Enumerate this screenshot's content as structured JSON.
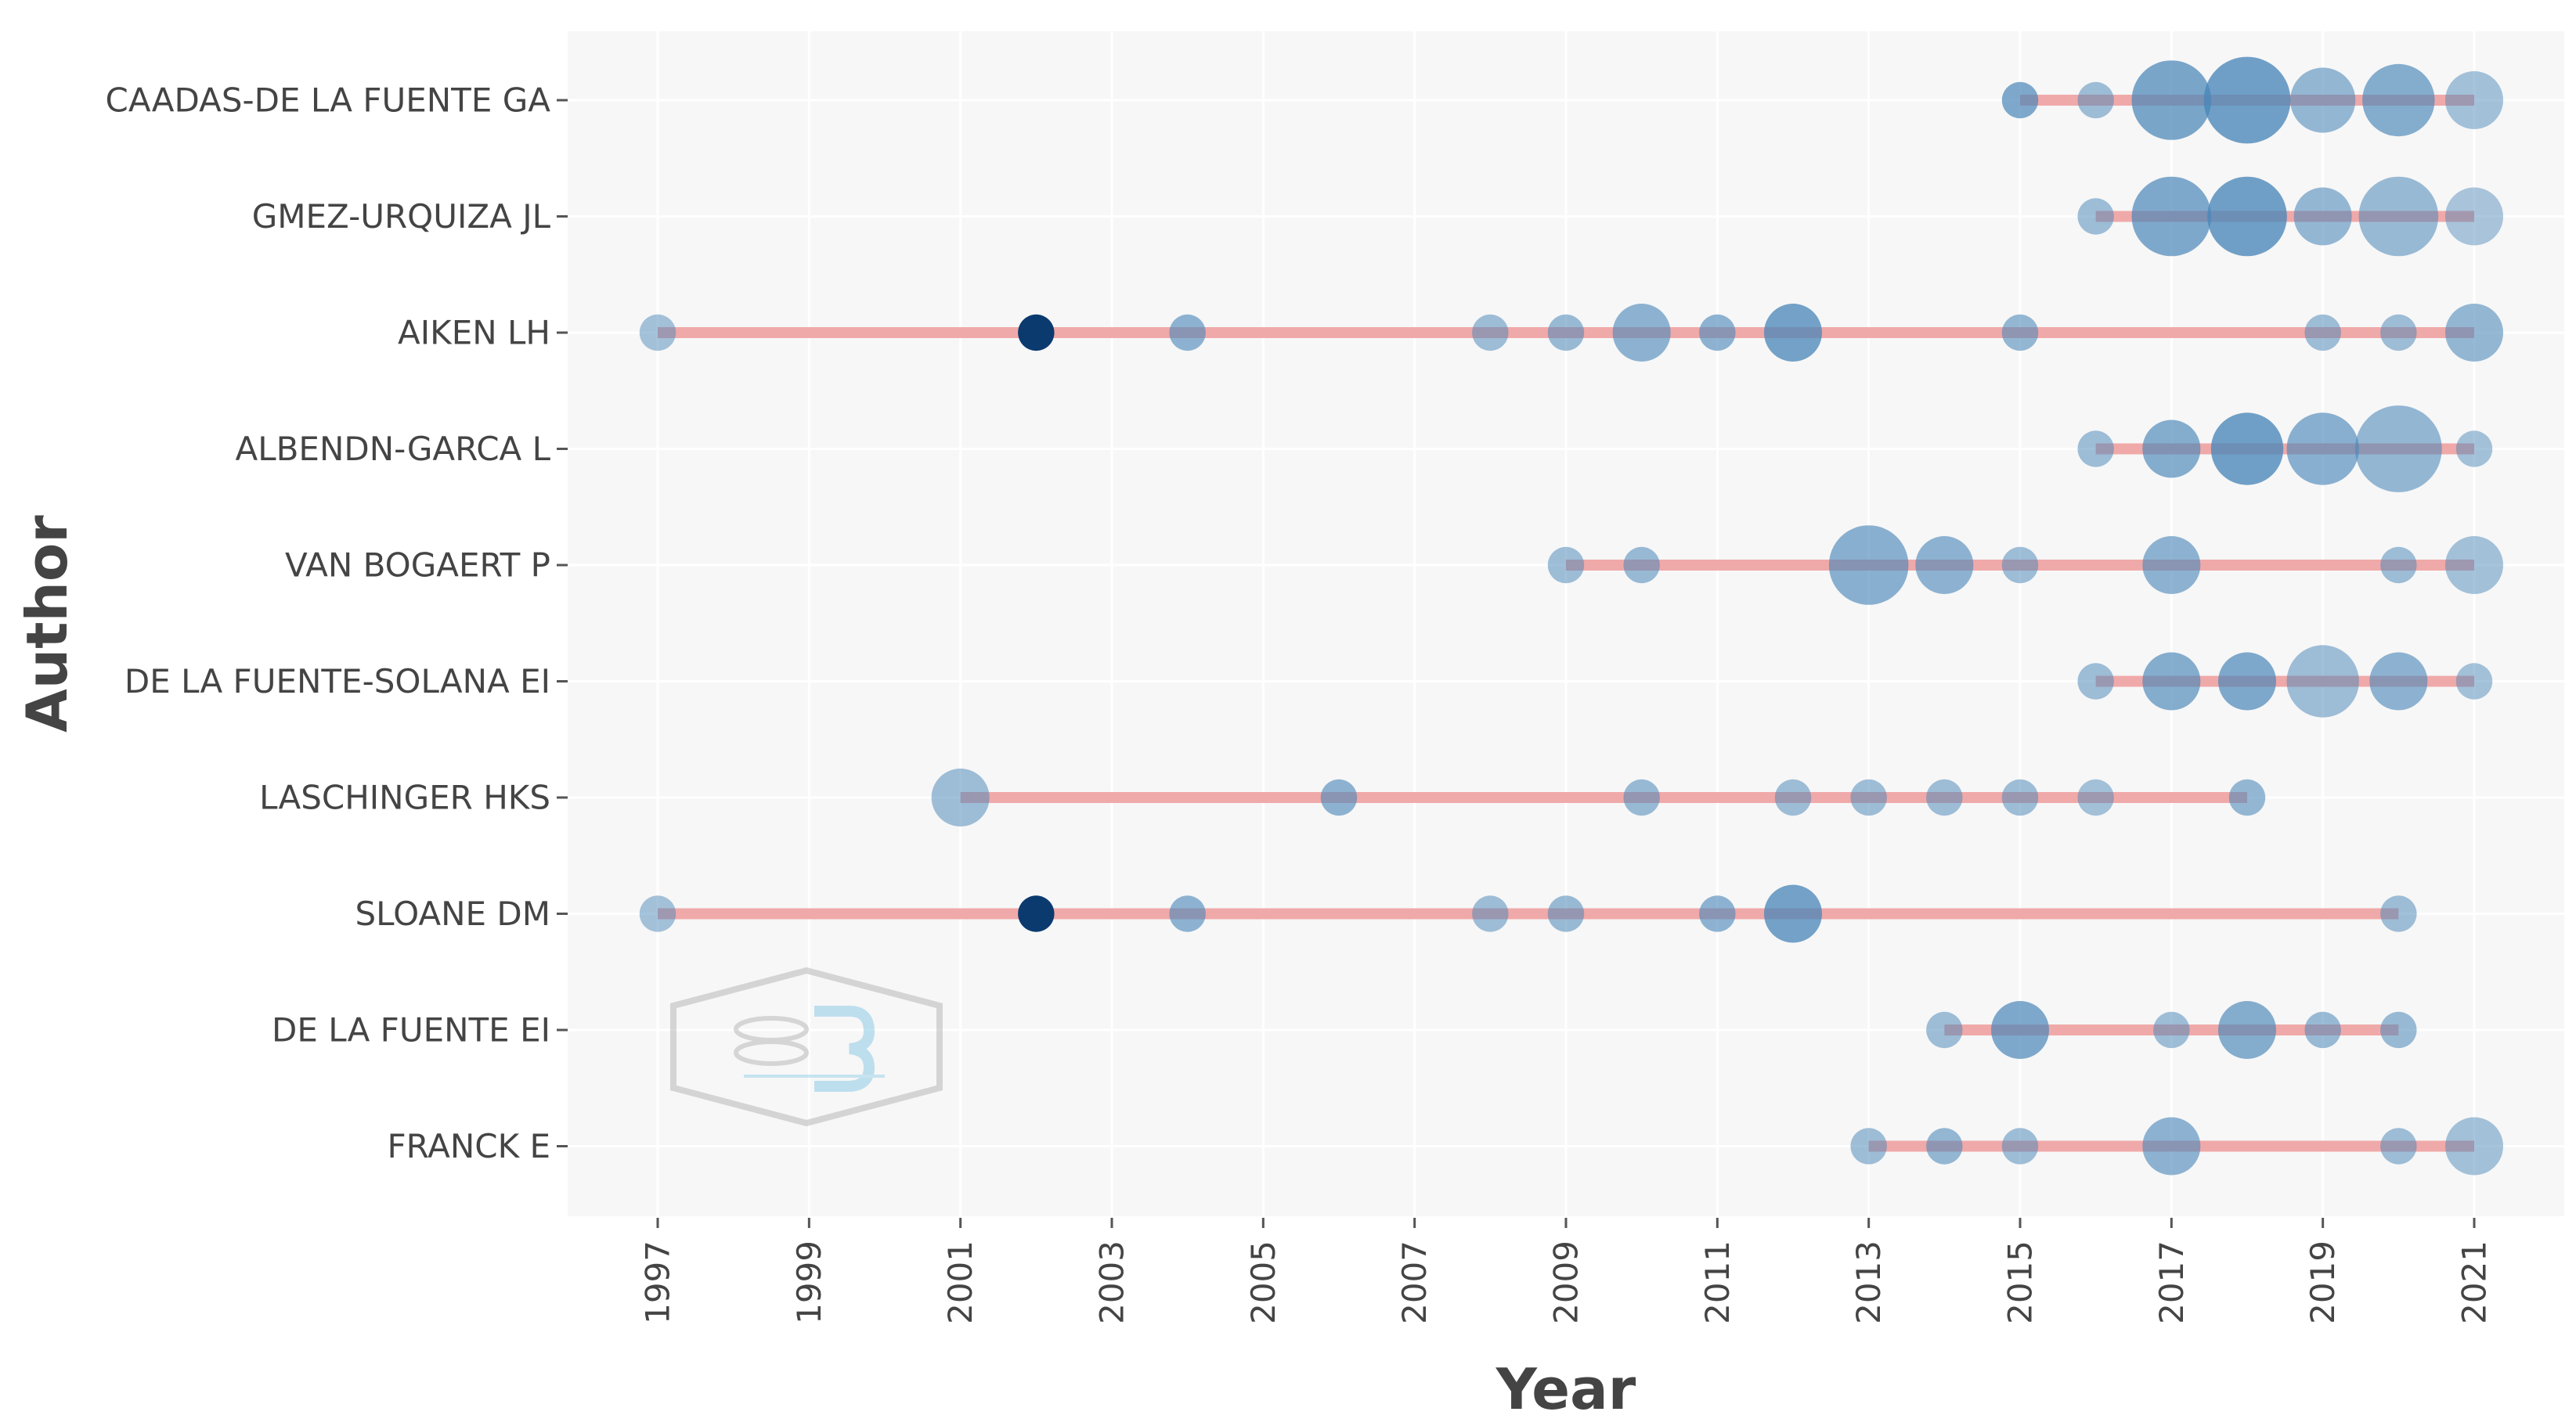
{
  "chart_data": {
    "type": "scatter",
    "subtype": "authors-production-over-time",
    "title": "",
    "xlabel": "Year",
    "ylabel": "Author",
    "xlim": [
      1995.8,
      2022.2
    ],
    "x_ticks": [
      "1997",
      "1999",
      "2001",
      "2003",
      "2005",
      "2007",
      "2009",
      "2011",
      "2013",
      "2015",
      "2017",
      "2019",
      "2021"
    ],
    "grid": true,
    "colors": {
      "panel": "#f7f7f7",
      "grid": "#ffffff",
      "line": "#f0a9a9",
      "point": "#4a86b8",
      "point_dark": "#0b3a6f"
    },
    "authors": [
      {
        "name": "CAADAS-DE LA FUENTE GA",
        "start": 2015,
        "end": 2021,
        "points": [
          {
            "year": 2015,
            "size": 2,
            "shade": 0.75
          },
          {
            "year": 2016,
            "size": 2,
            "shade": 0.45
          },
          {
            "year": 2017,
            "size": 8,
            "shade": 0.8
          },
          {
            "year": 2018,
            "size": 9,
            "shade": 0.9
          },
          {
            "year": 2019,
            "size": 6,
            "shade": 0.55
          },
          {
            "year": 2020,
            "size": 7,
            "shade": 0.7
          },
          {
            "year": 2021,
            "size": 5,
            "shade": 0.4
          }
        ]
      },
      {
        "name": "GMEZ-URQUIZA JL",
        "start": 2016,
        "end": 2021,
        "points": [
          {
            "year": 2016,
            "size": 2,
            "shade": 0.45
          },
          {
            "year": 2017,
            "size": 8,
            "shade": 0.75
          },
          {
            "year": 2018,
            "size": 8,
            "shade": 0.9
          },
          {
            "year": 2019,
            "size": 5,
            "shade": 0.55
          },
          {
            "year": 2020,
            "size": 8,
            "shade": 0.5
          },
          {
            "year": 2021,
            "size": 5,
            "shade": 0.35
          }
        ]
      },
      {
        "name": "AIKEN LH",
        "start": 1997,
        "end": 2021,
        "points": [
          {
            "year": 1997,
            "size": 2,
            "shade": 0.4
          },
          {
            "year": 2002,
            "size": 2,
            "shade": 1.0
          },
          {
            "year": 2004,
            "size": 2,
            "shade": 0.6
          },
          {
            "year": 2008,
            "size": 2,
            "shade": 0.45
          },
          {
            "year": 2009,
            "size": 2,
            "shade": 0.5
          },
          {
            "year": 2010,
            "size": 5,
            "shade": 0.6
          },
          {
            "year": 2011,
            "size": 2,
            "shade": 0.6
          },
          {
            "year": 2012,
            "size": 5,
            "shade": 0.85
          },
          {
            "year": 2015,
            "size": 2,
            "shade": 0.55
          },
          {
            "year": 2019,
            "size": 2,
            "shade": 0.45
          },
          {
            "year": 2020,
            "size": 2,
            "shade": 0.45
          },
          {
            "year": 2021,
            "size": 5,
            "shade": 0.55
          }
        ]
      },
      {
        "name": "ALBENDN-GARCA L",
        "start": 2016,
        "end": 2021,
        "points": [
          {
            "year": 2016,
            "size": 2,
            "shade": 0.45
          },
          {
            "year": 2017,
            "size": 5,
            "shade": 0.7
          },
          {
            "year": 2018,
            "size": 7,
            "shade": 0.9
          },
          {
            "year": 2019,
            "size": 7,
            "shade": 0.65
          },
          {
            "year": 2020,
            "size": 9,
            "shade": 0.55
          },
          {
            "year": 2021,
            "size": 2,
            "shade": 0.4
          }
        ]
      },
      {
        "name": "VAN BOGAERT P",
        "start": 2009,
        "end": 2021,
        "points": [
          {
            "year": 2009,
            "size": 2,
            "shade": 0.45
          },
          {
            "year": 2010,
            "size": 2,
            "shade": 0.5
          },
          {
            "year": 2013,
            "size": 8,
            "shade": 0.65
          },
          {
            "year": 2014,
            "size": 5,
            "shade": 0.6
          },
          {
            "year": 2015,
            "size": 2,
            "shade": 0.45
          },
          {
            "year": 2017,
            "size": 5,
            "shade": 0.6
          },
          {
            "year": 2020,
            "size": 2,
            "shade": 0.45
          },
          {
            "year": 2021,
            "size": 5,
            "shade": 0.4
          }
        ]
      },
      {
        "name": "DE LA FUENTE-SOLANA EI",
        "start": 2016,
        "end": 2021,
        "points": [
          {
            "year": 2016,
            "size": 2,
            "shade": 0.45
          },
          {
            "year": 2017,
            "size": 5,
            "shade": 0.7
          },
          {
            "year": 2018,
            "size": 5,
            "shade": 0.75
          },
          {
            "year": 2019,
            "size": 7,
            "shade": 0.45
          },
          {
            "year": 2020,
            "size": 5,
            "shade": 0.6
          },
          {
            "year": 2021,
            "size": 2,
            "shade": 0.4
          }
        ]
      },
      {
        "name": "LASCHINGER HKS",
        "start": 2001,
        "end": 2018,
        "points": [
          {
            "year": 2001,
            "size": 5,
            "shade": 0.45
          },
          {
            "year": 2006,
            "size": 2,
            "shade": 0.6
          },
          {
            "year": 2010,
            "size": 2,
            "shade": 0.5
          },
          {
            "year": 2012,
            "size": 2,
            "shade": 0.45
          },
          {
            "year": 2013,
            "size": 2,
            "shade": 0.45
          },
          {
            "year": 2014,
            "size": 2,
            "shade": 0.45
          },
          {
            "year": 2015,
            "size": 2,
            "shade": 0.45
          },
          {
            "year": 2016,
            "size": 2,
            "shade": 0.4
          },
          {
            "year": 2018,
            "size": 2,
            "shade": 0.55
          }
        ]
      },
      {
        "name": "SLOANE DM",
        "start": 1997,
        "end": 2020,
        "points": [
          {
            "year": 1997,
            "size": 2,
            "shade": 0.4
          },
          {
            "year": 2002,
            "size": 2,
            "shade": 1.0
          },
          {
            "year": 2004,
            "size": 2,
            "shade": 0.6
          },
          {
            "year": 2008,
            "size": 2,
            "shade": 0.45
          },
          {
            "year": 2009,
            "size": 2,
            "shade": 0.5
          },
          {
            "year": 2011,
            "size": 2,
            "shade": 0.6
          },
          {
            "year": 2012,
            "size": 5,
            "shade": 0.85
          },
          {
            "year": 2020,
            "size": 2,
            "shade": 0.45
          }
        ]
      },
      {
        "name": "DE LA FUENTE EI",
        "start": 2014,
        "end": 2020,
        "points": [
          {
            "year": 2014,
            "size": 2,
            "shade": 0.45
          },
          {
            "year": 2015,
            "size": 5,
            "shade": 0.75
          },
          {
            "year": 2017,
            "size": 2,
            "shade": 0.45
          },
          {
            "year": 2018,
            "size": 5,
            "shade": 0.7
          },
          {
            "year": 2019,
            "size": 2,
            "shade": 0.5
          },
          {
            "year": 2020,
            "size": 2,
            "shade": 0.5
          }
        ]
      },
      {
        "name": "FRANCK E",
        "start": 2013,
        "end": 2021,
        "points": [
          {
            "year": 2013,
            "size": 2,
            "shade": 0.45
          },
          {
            "year": 2014,
            "size": 2,
            "shade": 0.55
          },
          {
            "year": 2015,
            "size": 2,
            "shade": 0.45
          },
          {
            "year": 2017,
            "size": 5,
            "shade": 0.6
          },
          {
            "year": 2020,
            "size": 2,
            "shade": 0.45
          },
          {
            "year": 2021,
            "size": 5,
            "shade": 0.4
          }
        ]
      }
    ]
  }
}
